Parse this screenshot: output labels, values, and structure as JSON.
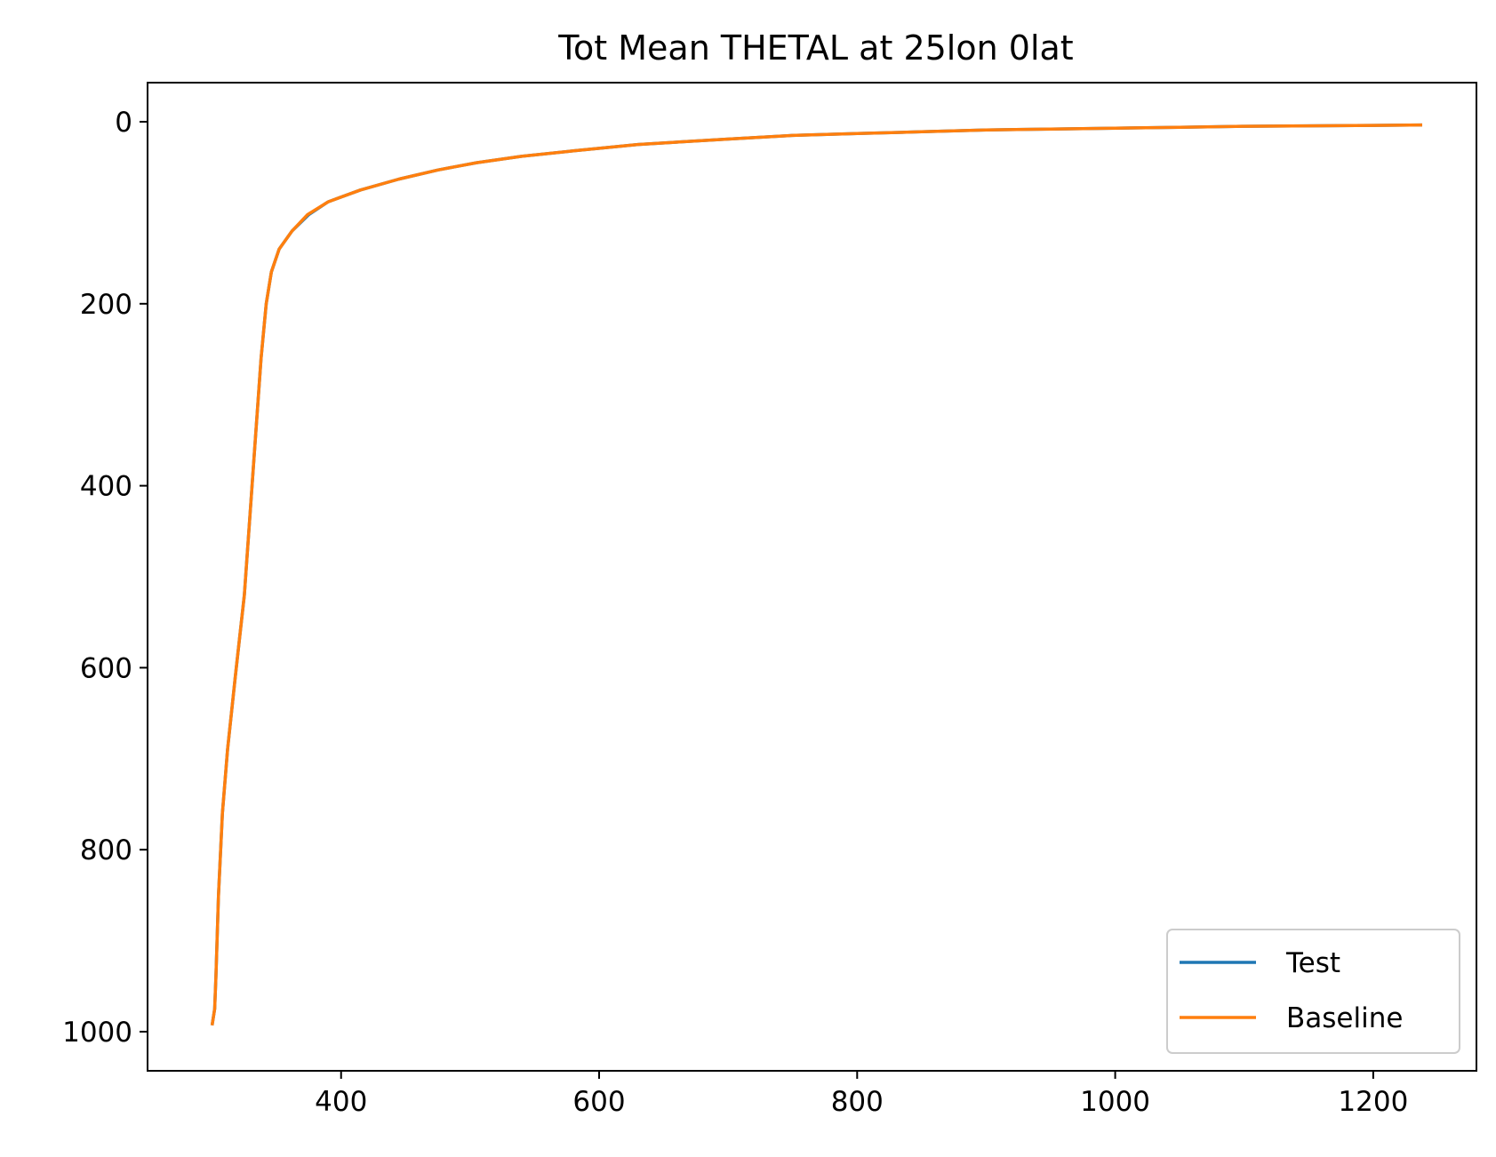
{
  "chart_data": {
    "type": "line",
    "title": "Tot Mean THETAL at 25lon 0lat",
    "xlabel": "",
    "ylabel": "",
    "xlim": [
      250,
      1280
    ],
    "ylim": [
      1043,
      -43
    ],
    "y_inverted": true,
    "x_ticks": [
      400,
      600,
      800,
      1000,
      1200
    ],
    "x_tick_labels": [
      "400",
      "600",
      "800",
      "1000",
      "1200"
    ],
    "y_ticks": [
      0,
      200,
      400,
      600,
      800,
      1000
    ],
    "y_tick_labels": [
      "0",
      "200",
      "400",
      "600",
      "800",
      "1000"
    ],
    "grid": false,
    "legend_position": "lower-right",
    "series": [
      {
        "name": "Test",
        "color": "#1f77b4",
        "x": [
          300,
          302,
          303,
          305,
          308,
          312,
          318,
          325,
          332,
          338,
          342,
          346,
          352,
          362,
          375,
          390,
          415,
          445,
          475,
          505,
          540,
          580,
          630,
          700,
          750,
          800,
          850,
          900,
          950,
          1000,
          1050,
          1100,
          1150,
          1200,
          1238
        ],
        "y": [
          993,
          975,
          940,
          850,
          760,
          690,
          610,
          520,
          380,
          260,
          200,
          165,
          140,
          120,
          102,
          88,
          75,
          63,
          53,
          45,
          38,
          32,
          25,
          19,
          15,
          13,
          11,
          9,
          8,
          7,
          6,
          5,
          4.5,
          4,
          3.5
        ]
      },
      {
        "name": "Baseline",
        "color": "#ff7f0e",
        "x": [
          300,
          302,
          303,
          305,
          308,
          312,
          318,
          325,
          332,
          338,
          342,
          346,
          352,
          362,
          374,
          390,
          415,
          445,
          475,
          505,
          540,
          580,
          630,
          700,
          750,
          800,
          850,
          900,
          950,
          1000,
          1050,
          1100,
          1150,
          1200,
          1238
        ],
        "y": [
          993,
          975,
          940,
          850,
          760,
          690,
          610,
          520,
          380,
          260,
          200,
          165,
          140,
          120,
          102,
          88,
          75,
          63,
          53,
          45,
          38,
          32,
          25,
          19,
          15,
          13,
          11,
          9,
          8,
          7,
          6,
          5,
          4.5,
          4,
          3.5
        ]
      }
    ]
  }
}
